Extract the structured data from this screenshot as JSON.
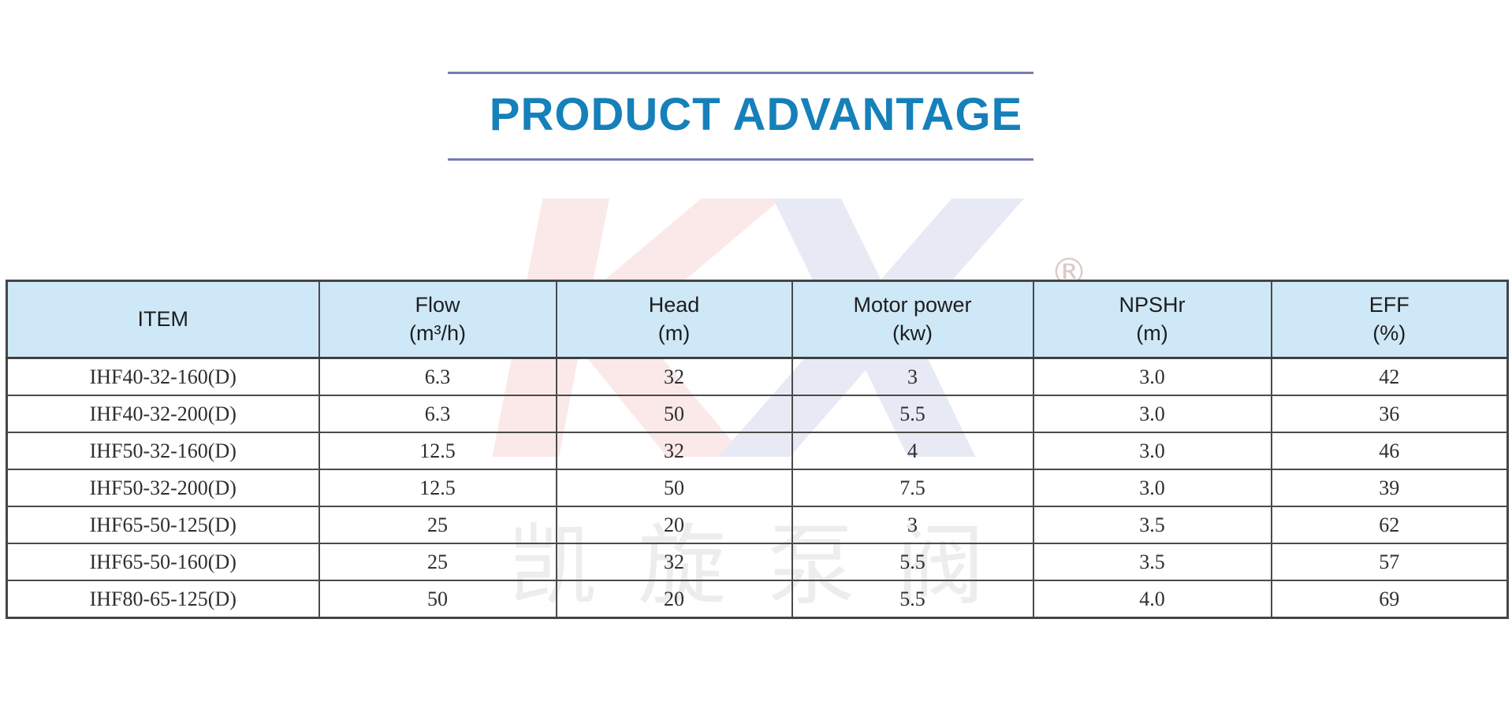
{
  "page": {
    "background_color": "#ffffff"
  },
  "title": {
    "text": "PRODUCT ADVANTAGE",
    "color": "#1580ba",
    "rule_color": "#767cb2"
  },
  "table": {
    "header_bg_color": "#cfe8f8",
    "border_color": "#4a4a4a",
    "columns": [
      {
        "label": "ITEM",
        "unit": ""
      },
      {
        "label": "Flow",
        "unit": "(m³/h)"
      },
      {
        "label": "Head",
        "unit": "(m)"
      },
      {
        "label": "Motor power",
        "unit": "(kw)"
      },
      {
        "label": "NPSHr",
        "unit": "(m)"
      },
      {
        "label": "EFF",
        "unit": "(%)"
      }
    ],
    "rows": [
      [
        "IHF40-32-160(D)",
        "6.3",
        "32",
        "3",
        "3.0",
        "42"
      ],
      [
        "IHF40-32-200(D)",
        "6.3",
        "50",
        "5.5",
        "3.0",
        "36"
      ],
      [
        "IHF50-32-160(D)",
        "12.5",
        "32",
        "4",
        "3.0",
        "46"
      ],
      [
        "IHF50-32-200(D)",
        "12.5",
        "50",
        "7.5",
        "3.0",
        "39"
      ],
      [
        "IHF65-50-125(D)",
        "25",
        "20",
        "3",
        "3.5",
        "62"
      ],
      [
        "IHF65-50-160(D)",
        "25",
        "32",
        "5.5",
        "3.5",
        "57"
      ],
      [
        "IHF80-65-125(D)",
        "50",
        "20",
        "5.5",
        "4.0",
        "69"
      ]
    ]
  },
  "watermark": {
    "letter_k": "K",
    "letter_x": "X",
    "k_color": "#d93025",
    "x_color": "#1f3f97",
    "registered_mark": "®",
    "cjk_text": "凯旋泵阀"
  }
}
